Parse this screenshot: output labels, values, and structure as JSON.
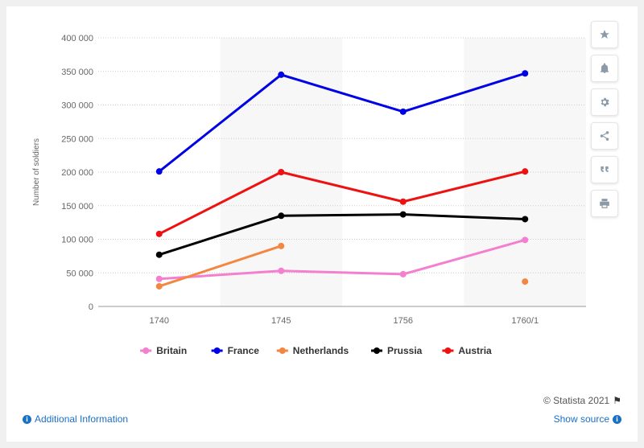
{
  "chart_data": {
    "type": "line",
    "title": "",
    "xlabel": "",
    "ylabel": "Number of soldiers",
    "categories": [
      "1740",
      "1745",
      "1756",
      "1760/1"
    ],
    "ylim": [
      0,
      400000
    ],
    "yticks": [
      0,
      50000,
      100000,
      150000,
      200000,
      250000,
      300000,
      350000,
      400000
    ],
    "ytick_labels": [
      "0",
      "50 000",
      "100 000",
      "150 000",
      "200 000",
      "250 000",
      "300 000",
      "350 000",
      "400 000"
    ],
    "grid": true,
    "legend_position": "bottom-center",
    "series": [
      {
        "name": "Britain",
        "color": "#f47fcf",
        "values": [
          41000,
          53000,
          48000,
          99000
        ],
        "gap_after": []
      },
      {
        "name": "France",
        "color": "#0000e6",
        "values": [
          201000,
          345000,
          290000,
          347000
        ],
        "gap_after": []
      },
      {
        "name": "Netherlands",
        "color": "#f28742",
        "values": [
          30000,
          90000,
          null,
          37000
        ],
        "gap_after": []
      },
      {
        "name": "Prussia",
        "color": "#000000",
        "values": [
          77000,
          135000,
          137000,
          130000
        ],
        "gap_after": []
      },
      {
        "name": "Austria",
        "color": "#ee1111",
        "values": [
          108000,
          200000,
          156000,
          201000
        ],
        "gap_after": []
      }
    ]
  },
  "toolbar": {
    "items": [
      {
        "name": "star-icon"
      },
      {
        "name": "bell-icon"
      },
      {
        "name": "gear-icon"
      },
      {
        "name": "share-icon"
      },
      {
        "name": "quote-icon"
      },
      {
        "name": "print-icon"
      }
    ]
  },
  "footer": {
    "copyright": "© Statista 2021",
    "additional_info": "Additional Information",
    "show_source": "Show source"
  }
}
